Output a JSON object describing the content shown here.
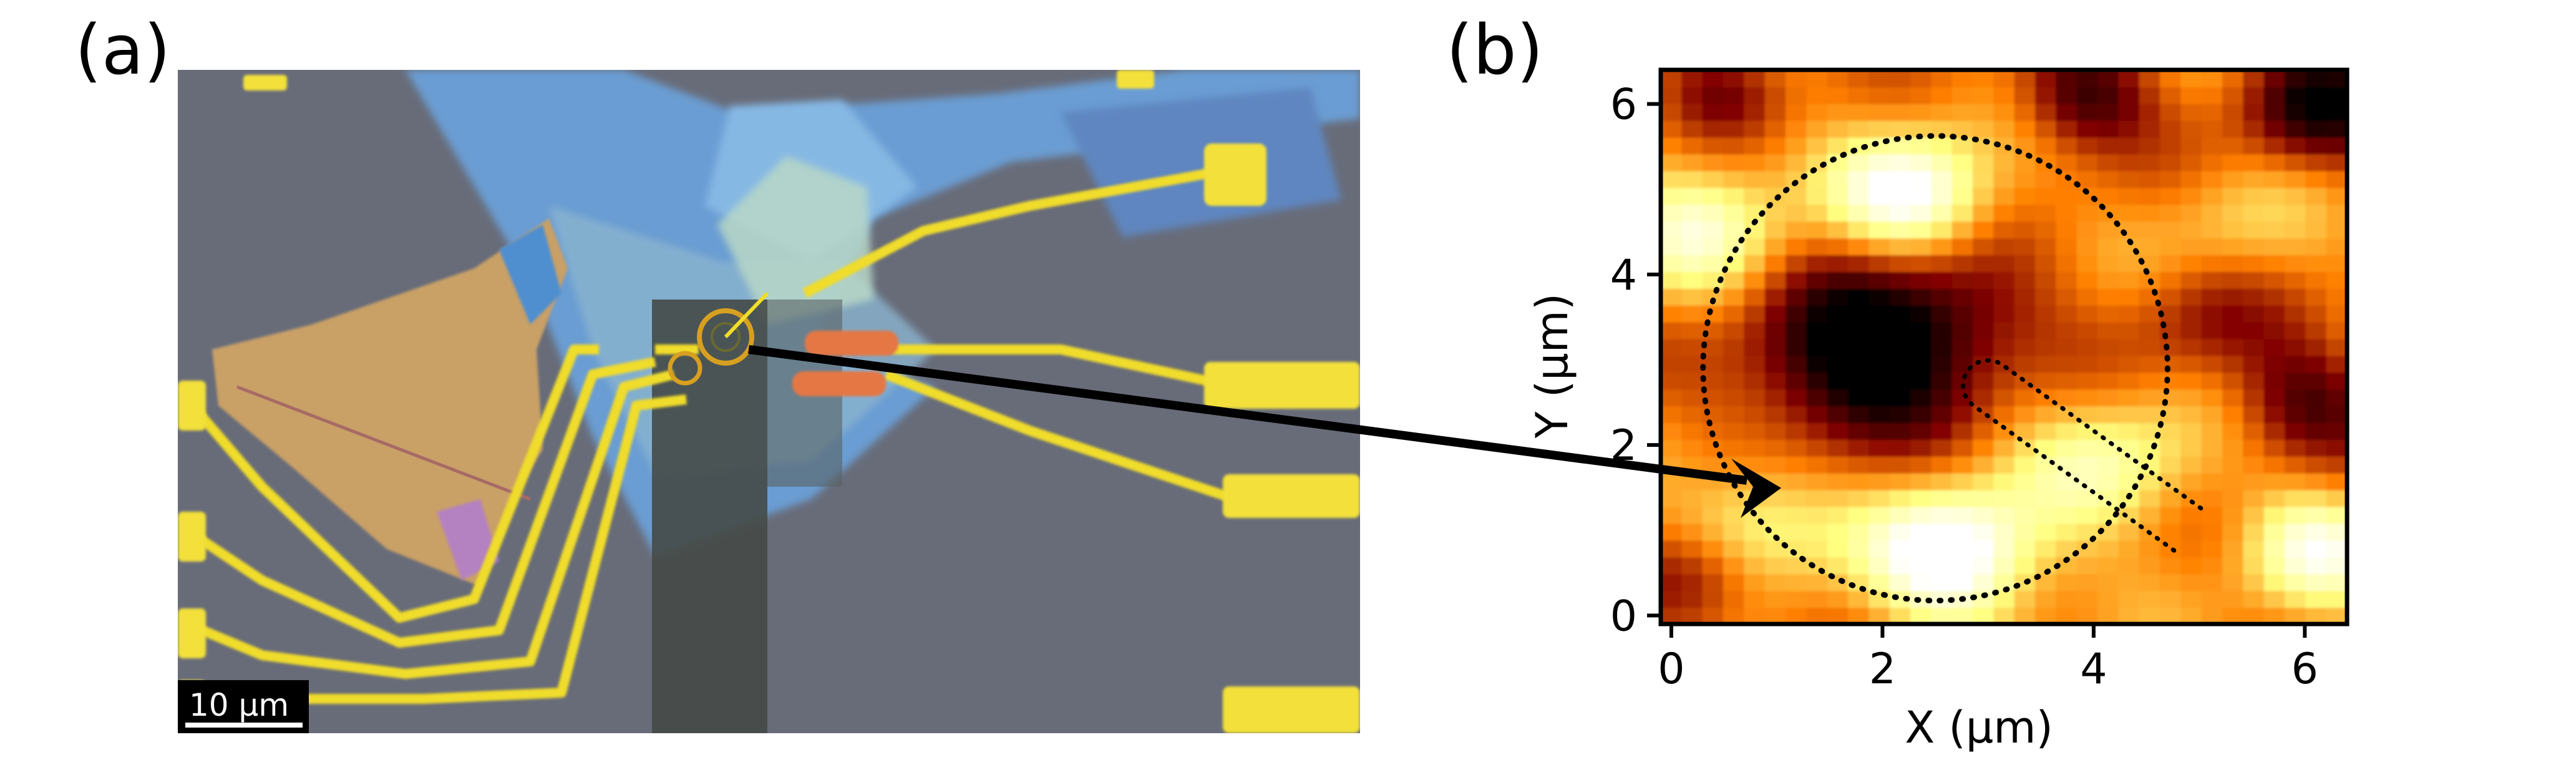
{
  "panel_a": {
    "label": "(a)",
    "scale_bar": "10 μm"
  },
  "panel_b": {
    "label": "(b)"
  },
  "chart_data": {
    "type": "heatmap",
    "colormap": "afmhot",
    "xlabel": "X (μm)",
    "ylabel": "Y (μm)",
    "xlim": [
      -0.1,
      6.4
    ],
    "ylim": [
      -0.1,
      6.4
    ],
    "xticks": [
      0,
      2,
      4,
      6
    ],
    "yticks": [
      0,
      2,
      4,
      6
    ],
    "grid": false,
    "overlays": {
      "circle_center": [
        2.5,
        2.9
      ],
      "circle_radius": 2.2,
      "line_from": [
        4.9,
        1.0
      ],
      "line_to": [
        3.0,
        2.7
      ]
    },
    "features": [
      {
        "x": 1.7,
        "y": 3.0,
        "level": -0.55,
        "sigma": 0.75
      },
      {
        "x": 2.6,
        "y": 3.6,
        "level": -0.3,
        "sigma": 0.65
      },
      {
        "x": 2.3,
        "y": 4.9,
        "level": 0.55,
        "sigma": 0.55
      },
      {
        "x": 2.7,
        "y": 0.7,
        "level": 0.6,
        "sigma": 0.6
      },
      {
        "x": 0.8,
        "y": 1.1,
        "level": 0.35,
        "sigma": 0.55
      },
      {
        "x": 0.3,
        "y": 4.5,
        "level": 0.35,
        "sigma": 0.6
      },
      {
        "x": 6.1,
        "y": 0.8,
        "level": 0.4,
        "sigma": 0.5
      },
      {
        "x": 4.2,
        "y": 1.8,
        "level": 0.3,
        "sigma": 0.6
      },
      {
        "x": 0.5,
        "y": 6.2,
        "level": -0.25,
        "sigma": 0.4
      },
      {
        "x": 3.9,
        "y": 6.1,
        "level": -0.4,
        "sigma": 0.45
      },
      {
        "x": 6.1,
        "y": 6.0,
        "level": -0.45,
        "sigma": 0.5
      },
      {
        "x": 6.0,
        "y": 2.5,
        "level": -0.35,
        "sigma": 0.5
      },
      {
        "x": 5.0,
        "y": 3.5,
        "level": -0.2,
        "sigma": 0.5
      },
      {
        "x": 0.2,
        "y": 0.4,
        "level": -0.35,
        "sigma": 0.45
      },
      {
        "x": 5.3,
        "y": 4.6,
        "level": 0.15,
        "sigma": 0.5
      }
    ]
  },
  "colors": {
    "substrate": "#686c79",
    "gold": "#f0dc2a",
    "hbn_blue": "#6fa2d6",
    "flake_orange": "#c9a066",
    "arrow": "#000000"
  }
}
